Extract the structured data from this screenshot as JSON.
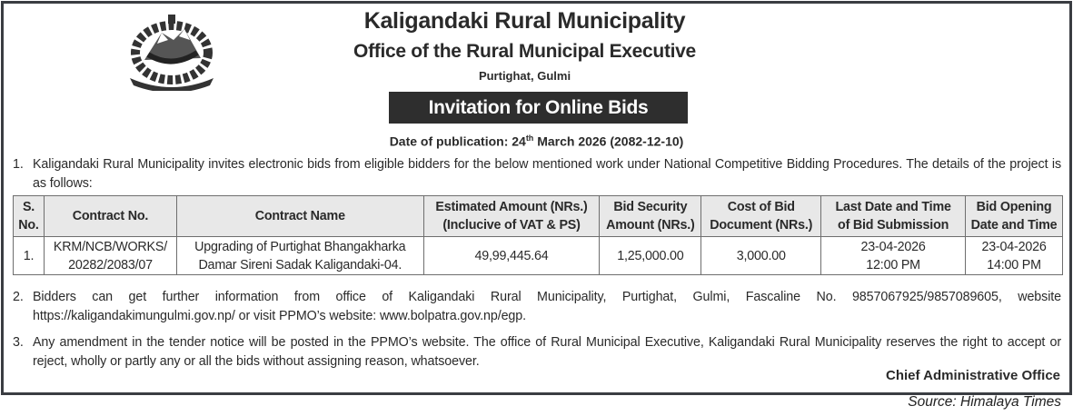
{
  "header": {
    "title": "Kaligandaki Rural Municipality",
    "subtitle": "Office of the Rural Municipal Executive",
    "location": "Purtighat, Gulmi",
    "notice_title": "Invitation for Online Bids",
    "date_label": "Date of publication: 24",
    "date_suffix": "th",
    "date_rest": " March 2026 (2082-12-10)"
  },
  "paragraphs": [
    {
      "num": "1.",
      "text": "Kaligandaki Rural Municipality invites electronic bids from eligible bidders for the below mentioned work under National Competitive Bidding Procedures. The details of the project is as follows:"
    },
    {
      "num": "2.",
      "text": "Bidders can get further information from office of Kaligandaki Rural Municipality, Purtighat, Gulmi, Fascaline No. 9857067925/9857089605, website https://kaligandakimungulmi.gov.np/ or visit PPMO’s website: www.bolpatra.gov.np/egp."
    },
    {
      "num": "3.",
      "text": "Any amendment in the tender notice will be posted in the PPMO’s website. The office of Rural Municipal Executive, Kaligandaki Rural Municipality reserves the right to accept or reject, wholly or partly any or all the bids without assigning reason, whatsoever."
    }
  ],
  "table": {
    "headers": [
      [
        "S.",
        "No."
      ],
      [
        "Contract No.",
        ""
      ],
      [
        "Contract Name",
        ""
      ],
      [
        "Estimated Amount (NRs.)",
        "(Inclucive  of VAT & PS)"
      ],
      [
        "Bid Security",
        "Amount (NRs.)"
      ],
      [
        "Cost of Bid",
        "Document (NRs.)"
      ],
      [
        "Last Date and Time",
        "of Bid Submission"
      ],
      [
        "Bid Opening",
        "Date and Time"
      ]
    ],
    "rows": [
      [
        [
          "1.",
          ""
        ],
        [
          "KRM/NCB/WORKS/",
          "20282/2083/07"
        ],
        [
          "Upgrading of Purtighat Bhangakharka",
          "Damar Sireni Sadak Kaligandaki-04."
        ],
        [
          "49,99,445.64",
          ""
        ],
        [
          "1,25,000.00",
          ""
        ],
        [
          "3,000.00",
          ""
        ],
        [
          "23-04-2026",
          "12:00 PM"
        ],
        [
          "23-04-2026",
          "14:00 PM"
        ]
      ]
    ]
  },
  "signature": "Chief Administrative Office",
  "source": "Source: Himalaya Times",
  "logo": {
    "icon": "nepal-emblem-logo"
  }
}
